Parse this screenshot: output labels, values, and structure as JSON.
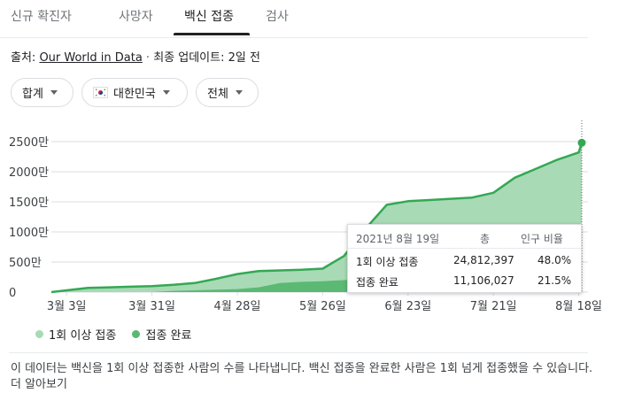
{
  "tabs": [
    {
      "label": "신규 확진자"
    },
    {
      "label": "사망자"
    },
    {
      "label": "백신 접종"
    },
    {
      "label": "검사"
    }
  ],
  "active_tab": "백신 접종",
  "source": {
    "prefix": "출처: ",
    "link": "Our World in Data",
    "separator": " · ",
    "updated": "최종 업데이트: 2일 전"
  },
  "filters": {
    "total": "합계",
    "country": "대한민국",
    "scope": "전체"
  },
  "colors": {
    "one_dose": "#a8dab5",
    "full": "#5bb974",
    "line": "#34a853",
    "axis": "#dadce0"
  },
  "chart_data": {
    "type": "area",
    "y_tick_labels": [
      "2500만",
      "2000만",
      "1500만",
      "1000만",
      "500만",
      "0"
    ],
    "y_ticks": [
      25000000,
      20000000,
      15000000,
      10000000,
      5000000,
      0
    ],
    "ylim": [
      0,
      25000000
    ],
    "x_tick_labels": [
      "3월 3일",
      "3월 31일",
      "4월 28일",
      "5월 26일",
      "6월 23일",
      "7월 21일",
      "8월 18일"
    ],
    "x_ticks": [
      "2021-03-03",
      "2021-03-31",
      "2021-04-28",
      "2021-05-26",
      "2021-06-23",
      "2021-07-21",
      "2021-08-18"
    ],
    "x": [
      "2021-02-26",
      "2021-03-03",
      "2021-03-10",
      "2021-03-17",
      "2021-03-24",
      "2021-03-31",
      "2021-04-07",
      "2021-04-14",
      "2021-04-21",
      "2021-04-28",
      "2021-05-05",
      "2021-05-12",
      "2021-05-19",
      "2021-05-26",
      "2021-06-02",
      "2021-06-09",
      "2021-06-16",
      "2021-06-23",
      "2021-06-30",
      "2021-07-07",
      "2021-07-14",
      "2021-07-21",
      "2021-07-28",
      "2021-08-04",
      "2021-08-11",
      "2021-08-18",
      "2021-08-19"
    ],
    "series": [
      {
        "name": "1회 이상 접종",
        "values": [
          0,
          300000,
          700000,
          800000,
          900000,
          1000000,
          1200000,
          1500000,
          2200000,
          3000000,
          3500000,
          3600000,
          3700000,
          3900000,
          6000000,
          10500000,
          14500000,
          15100000,
          15300000,
          15500000,
          15700000,
          16500000,
          19000000,
          20500000,
          22000000,
          23200000,
          24812397
        ]
      },
      {
        "name": "접종 완료",
        "values": [
          0,
          0,
          0,
          0,
          0,
          0,
          200000,
          300000,
          400000,
          500000,
          800000,
          1500000,
          1700000,
          1800000,
          2000000,
          2100000,
          2300000,
          2500000,
          3000000,
          4000000,
          5000000,
          6000000,
          7500000,
          8500000,
          9500000,
          10500000,
          11106027
        ]
      }
    ],
    "tooltip": {
      "date": "2021년 8월 19일",
      "col_total": "총",
      "col_ratio": "인구 비율",
      "rows": [
        {
          "label": "1회 이상 접종",
          "total": "24,812,397",
          "ratio": "48.0%"
        },
        {
          "label": "접종 완료",
          "total": "11,106,027",
          "ratio": "21.5%"
        }
      ]
    },
    "grid": true,
    "legend_position": "bottom-left"
  },
  "legend": [
    {
      "label": "1회 이상 접종",
      "color": "#a8dab5"
    },
    {
      "label": "접종 완료",
      "color": "#5bb974"
    }
  ],
  "footnote": "이 데이터는 백신을 1회 이상 접종한 사람의 수를 나타냅니다. 백신 접종을 완료한 사람은 1회 넘게 접종했을 수 있습니다. 더 알아보기"
}
